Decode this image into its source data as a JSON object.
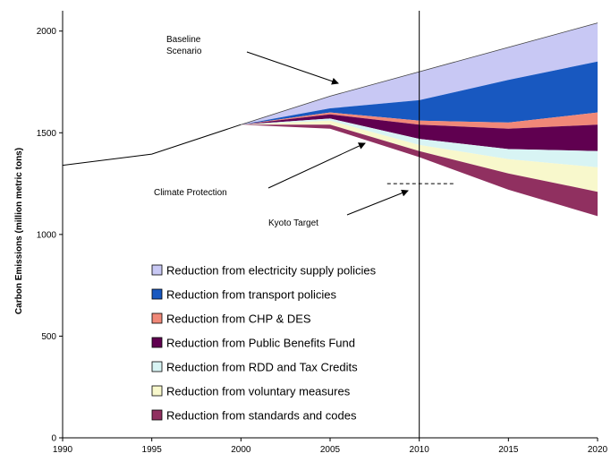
{
  "chart_data": {
    "type": "area",
    "ylabel": "Carbon Emissions (million metric tons)",
    "xlim": [
      1990,
      2020
    ],
    "ylim": [
      0,
      2100
    ],
    "x_ticks": [
      1990,
      1995,
      2000,
      2005,
      2010,
      2015,
      2020
    ],
    "y_ticks": [
      0,
      500,
      1000,
      1500,
      2000
    ],
    "vertical_line_x": 2010,
    "historical": {
      "x": [
        1990,
        1995,
        2000
      ],
      "y": [
        1340,
        1395,
        1540
      ]
    },
    "projection_x": [
      2000,
      2005,
      2010,
      2015,
      2020
    ],
    "baseline": [
      1540,
      1680,
      1800,
      1920,
      2040
    ],
    "series": [
      {
        "name": "Reduction from electricity supply policies",
        "color": "#c8c8f4",
        "top": [
          1540,
          1680,
          1800,
          1920,
          2040
        ],
        "bottom": [
          1540,
          1620,
          1660,
          1760,
          1850
        ]
      },
      {
        "name": "Reduction from transport policies",
        "color": "#1858c0",
        "top": [
          1540,
          1620,
          1660,
          1760,
          1850
        ],
        "bottom": [
          1540,
          1600,
          1560,
          1550,
          1600
        ]
      },
      {
        "name": "Reduction from CHP & DES",
        "color": "#f08878",
        "top": [
          1540,
          1600,
          1560,
          1550,
          1600
        ],
        "bottom": [
          1540,
          1590,
          1540,
          1520,
          1540
        ]
      },
      {
        "name": "Reduction from Public Benefits Fund",
        "color": "#600050",
        "top": [
          1540,
          1590,
          1540,
          1520,
          1540
        ],
        "bottom": [
          1540,
          1570,
          1470,
          1420,
          1410
        ]
      },
      {
        "name": "Reduction from RDD and Tax Credits",
        "color": "#d8f4f4",
        "top": [
          1540,
          1570,
          1470,
          1420,
          1410
        ],
        "bottom": [
          1540,
          1560,
          1440,
          1370,
          1330
        ]
      },
      {
        "name": "Reduction from voluntary measures",
        "color": "#f8f8cc",
        "top": [
          1540,
          1560,
          1440,
          1370,
          1330
        ],
        "bottom": [
          1540,
          1540,
          1410,
          1300,
          1210
        ]
      },
      {
        "name": "Reduction from standards and codes",
        "color": "#903060",
        "top": [
          1540,
          1540,
          1410,
          1300,
          1210
        ],
        "bottom": [
          1540,
          1520,
          1380,
          1220,
          1090
        ]
      }
    ],
    "kyoto_target": {
      "x": [
        2008.2,
        2012
      ],
      "y": 1250
    },
    "annotations": [
      {
        "id": "baseline",
        "lines": [
          "Baseline",
          "Scenario"
        ]
      },
      {
        "id": "climate",
        "lines": [
          "Climate Protection"
        ]
      },
      {
        "id": "kyoto",
        "lines": [
          "Kyoto Target"
        ]
      }
    ]
  }
}
